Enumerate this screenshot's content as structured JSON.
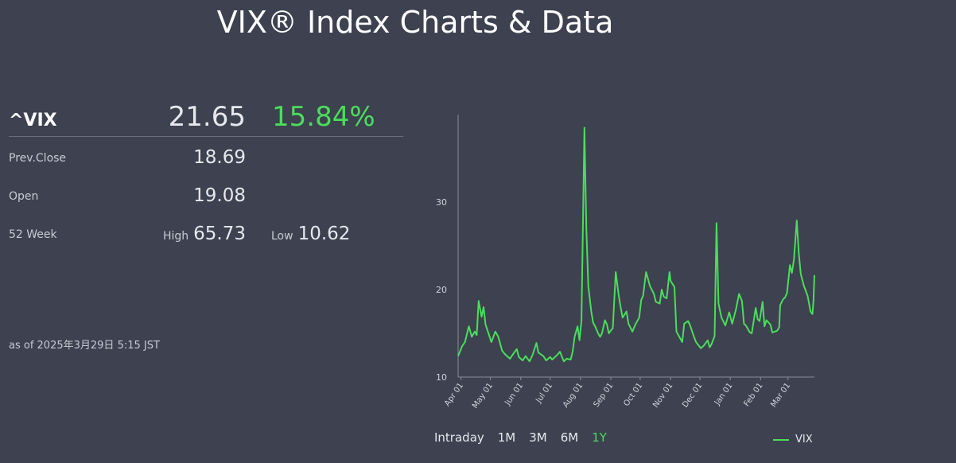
{
  "page": {
    "title": "VIX® Index Charts & Data"
  },
  "quote": {
    "symbol": "^VIX",
    "price": "21.65",
    "change_pct": "15.84%",
    "prev_close_label": "Prev.Close",
    "prev_close": "18.69",
    "open_label": "Open",
    "open": "19.08",
    "week52_label": "52 Week",
    "high_label": "High",
    "high": "65.73",
    "low_label": "Low",
    "low": "10.62",
    "as_of": "as of 2025年3月29日 5:15 JST"
  },
  "colors": {
    "up": "#4ade5a",
    "background": "#3d4150",
    "axis": "#8a8e99"
  },
  "ranges": [
    {
      "label": "Intraday",
      "active": false
    },
    {
      "label": "1M",
      "active": false
    },
    {
      "label": "3M",
      "active": false
    },
    {
      "label": "6M",
      "active": false
    },
    {
      "label": "1Y",
      "active": true
    }
  ],
  "chart_data": {
    "type": "line",
    "ylim": [
      10,
      40
    ],
    "yticks": [
      10,
      20,
      30
    ],
    "xticks": [
      {
        "label": "Apr 01",
        "x": "2024-04-01"
      },
      {
        "label": "May 01",
        "x": "2024-05-01"
      },
      {
        "label": "Jun 01",
        "x": "2024-06-01"
      },
      {
        "label": "Jul 01",
        "x": "2024-07-01"
      },
      {
        "label": "Aug 01",
        "x": "2024-08-01"
      },
      {
        "label": "Sep 01",
        "x": "2024-09-01"
      },
      {
        "label": "Oct 01",
        "x": "2024-10-01"
      },
      {
        "label": "Nov 01",
        "x": "2024-11-01"
      },
      {
        "label": "Dec 01",
        "x": "2024-12-01"
      },
      {
        "label": "Jan 01",
        "x": "2025-01-01"
      },
      {
        "label": "Feb 01",
        "x": "2025-02-01"
      },
      {
        "label": "Mar 01",
        "x": "2025-03-01"
      }
    ],
    "xrange": [
      "2024-03-29",
      "2025-03-28"
    ],
    "series": [
      {
        "name": "VIX",
        "points": [
          [
            "2024-03-29",
            12.4
          ],
          [
            "2024-04-02",
            13.5
          ],
          [
            "2024-04-05",
            14.0
          ],
          [
            "2024-04-09",
            15.8
          ],
          [
            "2024-04-12",
            14.6
          ],
          [
            "2024-04-15",
            15.2
          ],
          [
            "2024-04-17",
            14.8
          ],
          [
            "2024-04-19",
            18.7
          ],
          [
            "2024-04-22",
            16.9
          ],
          [
            "2024-04-24",
            18.0
          ],
          [
            "2024-04-26",
            16.0
          ],
          [
            "2024-04-29",
            15.0
          ],
          [
            "2024-05-02",
            14.0
          ],
          [
            "2024-05-06",
            15.2
          ],
          [
            "2024-05-09",
            14.6
          ],
          [
            "2024-05-13",
            13.0
          ],
          [
            "2024-05-16",
            12.6
          ],
          [
            "2024-05-21",
            12.1
          ],
          [
            "2024-05-24",
            12.6
          ],
          [
            "2024-05-28",
            13.2
          ],
          [
            "2024-05-30",
            12.3
          ],
          [
            "2024-06-03",
            11.9
          ],
          [
            "2024-06-06",
            12.4
          ],
          [
            "2024-06-10",
            11.8
          ],
          [
            "2024-06-13",
            12.5
          ],
          [
            "2024-06-17",
            13.9
          ],
          [
            "2024-06-19",
            12.8
          ],
          [
            "2024-06-24",
            12.4
          ],
          [
            "2024-06-27",
            11.9
          ],
          [
            "2024-07-01",
            12.3
          ],
          [
            "2024-07-03",
            12.0
          ],
          [
            "2024-07-08",
            12.5
          ],
          [
            "2024-07-11",
            12.9
          ],
          [
            "2024-07-15",
            11.8
          ],
          [
            "2024-07-18",
            12.1
          ],
          [
            "2024-07-22",
            12.0
          ],
          [
            "2024-07-24",
            12.9
          ],
          [
            "2024-07-26",
            14.6
          ],
          [
            "2024-07-29",
            15.8
          ],
          [
            "2024-07-31",
            14.2
          ],
          [
            "2024-08-02",
            16.5
          ],
          [
            "2024-08-05",
            38.5
          ],
          [
            "2024-08-07",
            27.0
          ],
          [
            "2024-08-09",
            20.4
          ],
          [
            "2024-08-12",
            17.5
          ],
          [
            "2024-08-14",
            16.2
          ],
          [
            "2024-08-16",
            15.8
          ],
          [
            "2024-08-19",
            15.0
          ],
          [
            "2024-08-21",
            14.6
          ],
          [
            "2024-08-23",
            15.0
          ],
          [
            "2024-08-26",
            16.5
          ],
          [
            "2024-08-28",
            16.0
          ],
          [
            "2024-08-30",
            15.0
          ],
          [
            "2024-09-03",
            15.6
          ],
          [
            "2024-09-06",
            22.0
          ],
          [
            "2024-09-09",
            19.4
          ],
          [
            "2024-09-11",
            18.0
          ],
          [
            "2024-09-13",
            16.8
          ],
          [
            "2024-09-17",
            17.5
          ],
          [
            "2024-09-19",
            16.1
          ],
          [
            "2024-09-23",
            15.2
          ],
          [
            "2024-09-26",
            16.0
          ],
          [
            "2024-09-30",
            16.8
          ],
          [
            "2024-10-02",
            18.8
          ],
          [
            "2024-10-04",
            19.3
          ],
          [
            "2024-10-07",
            22.0
          ],
          [
            "2024-10-09",
            21.2
          ],
          [
            "2024-10-11",
            20.4
          ],
          [
            "2024-10-15",
            19.5
          ],
          [
            "2024-10-17",
            18.6
          ],
          [
            "2024-10-21",
            18.4
          ],
          [
            "2024-10-23",
            20.0
          ],
          [
            "2024-10-25",
            19.2
          ],
          [
            "2024-10-28",
            19.0
          ],
          [
            "2024-10-31",
            22.0
          ],
          [
            "2024-11-01",
            21.0
          ],
          [
            "2024-11-05",
            20.3
          ],
          [
            "2024-11-07",
            15.2
          ],
          [
            "2024-11-11",
            14.4
          ],
          [
            "2024-11-13",
            14.0
          ],
          [
            "2024-11-15",
            16.1
          ],
          [
            "2024-11-19",
            16.4
          ],
          [
            "2024-11-21",
            15.9
          ],
          [
            "2024-11-25",
            14.6
          ],
          [
            "2024-11-27",
            14.0
          ],
          [
            "2024-12-02",
            13.3
          ],
          [
            "2024-12-05",
            13.6
          ],
          [
            "2024-12-09",
            14.2
          ],
          [
            "2024-12-11",
            13.4
          ],
          [
            "2024-12-13",
            13.8
          ],
          [
            "2024-12-16",
            14.7
          ],
          [
            "2024-12-18",
            27.6
          ],
          [
            "2024-12-20",
            18.4
          ],
          [
            "2024-12-23",
            16.8
          ],
          [
            "2024-12-27",
            15.9
          ],
          [
            "2024-12-31",
            17.4
          ],
          [
            "2025-01-03",
            16.1
          ],
          [
            "2025-01-07",
            17.8
          ],
          [
            "2025-01-10",
            19.5
          ],
          [
            "2025-01-13",
            18.7
          ],
          [
            "2025-01-15",
            16.1
          ],
          [
            "2025-01-17",
            15.9
          ],
          [
            "2025-01-21",
            15.1
          ],
          [
            "2025-01-23",
            15.0
          ],
          [
            "2025-01-27",
            17.9
          ],
          [
            "2025-01-29",
            16.6
          ],
          [
            "2025-01-31",
            16.4
          ],
          [
            "2025-02-03",
            18.6
          ],
          [
            "2025-02-05",
            15.8
          ],
          [
            "2025-02-07",
            16.5
          ],
          [
            "2025-02-11",
            16.0
          ],
          [
            "2025-02-13",
            15.1
          ],
          [
            "2025-02-18",
            15.3
          ],
          [
            "2025-02-20",
            15.7
          ],
          [
            "2025-02-21",
            18.2
          ],
          [
            "2025-02-24",
            18.9
          ],
          [
            "2025-02-26",
            19.1
          ],
          [
            "2025-02-28",
            19.6
          ],
          [
            "2025-03-03",
            22.8
          ],
          [
            "2025-03-05",
            21.9
          ],
          [
            "2025-03-07",
            23.4
          ],
          [
            "2025-03-10",
            27.9
          ],
          [
            "2025-03-12",
            24.2
          ],
          [
            "2025-03-14",
            21.8
          ],
          [
            "2025-03-17",
            20.5
          ],
          [
            "2025-03-19",
            19.9
          ],
          [
            "2025-03-21",
            19.3
          ],
          [
            "2025-03-24",
            17.5
          ],
          [
            "2025-03-26",
            17.2
          ],
          [
            "2025-03-27",
            18.7
          ],
          [
            "2025-03-28",
            21.65
          ]
        ]
      }
    ]
  }
}
